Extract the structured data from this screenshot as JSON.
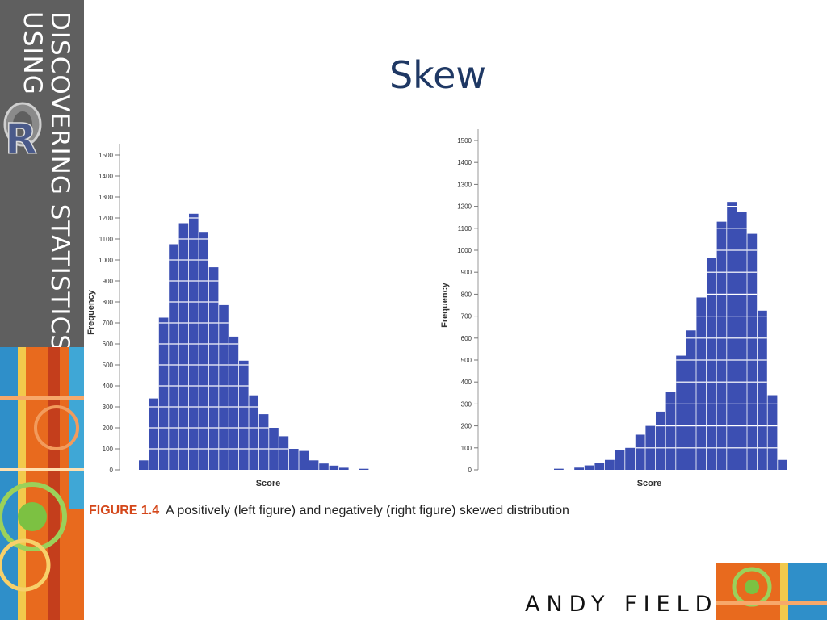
{
  "slide": {
    "title": "Skew",
    "caption_label": "FIGURE 1.4",
    "caption_text": "A positively (left figure) and negatively (right figure) skewed distribution",
    "author": "ANDY FIELD"
  },
  "sidebar": {
    "line1": "DISCOVERING STATISTICS",
    "line2": "USING",
    "logo_letter": "R"
  },
  "colors": {
    "title": "#1f3864",
    "bar": "#3c4fb2",
    "caption_label": "#d4471a",
    "sidebar_grey": "#5f5f5f",
    "accent_orange": "#e86a1e"
  },
  "chart_data": [
    {
      "type": "bar",
      "ylabel": "Frequency",
      "xlabel": "Score",
      "ylim": [
        0,
        1500
      ],
      "yticks": [
        0,
        100,
        200,
        300,
        400,
        500,
        600,
        700,
        800,
        900,
        1000,
        1100,
        1200,
        1300,
        1400,
        1500
      ],
      "values": [
        45,
        340,
        725,
        1075,
        1175,
        1220,
        1130,
        965,
        785,
        635,
        520,
        355,
        265,
        200,
        160,
        100,
        90,
        45,
        30,
        20,
        10,
        0,
        5
      ]
    },
    {
      "type": "bar",
      "ylabel": "Frequency",
      "xlabel": "Score",
      "ylim": [
        0,
        1500
      ],
      "yticks": [
        0,
        100,
        200,
        300,
        400,
        500,
        600,
        700,
        800,
        900,
        1000,
        1100,
        1200,
        1300,
        1400,
        1500
      ],
      "values": [
        5,
        0,
        10,
        20,
        30,
        45,
        90,
        100,
        160,
        200,
        265,
        355,
        520,
        635,
        785,
        965,
        1130,
        1220,
        1175,
        1075,
        725,
        340,
        45
      ]
    }
  ]
}
